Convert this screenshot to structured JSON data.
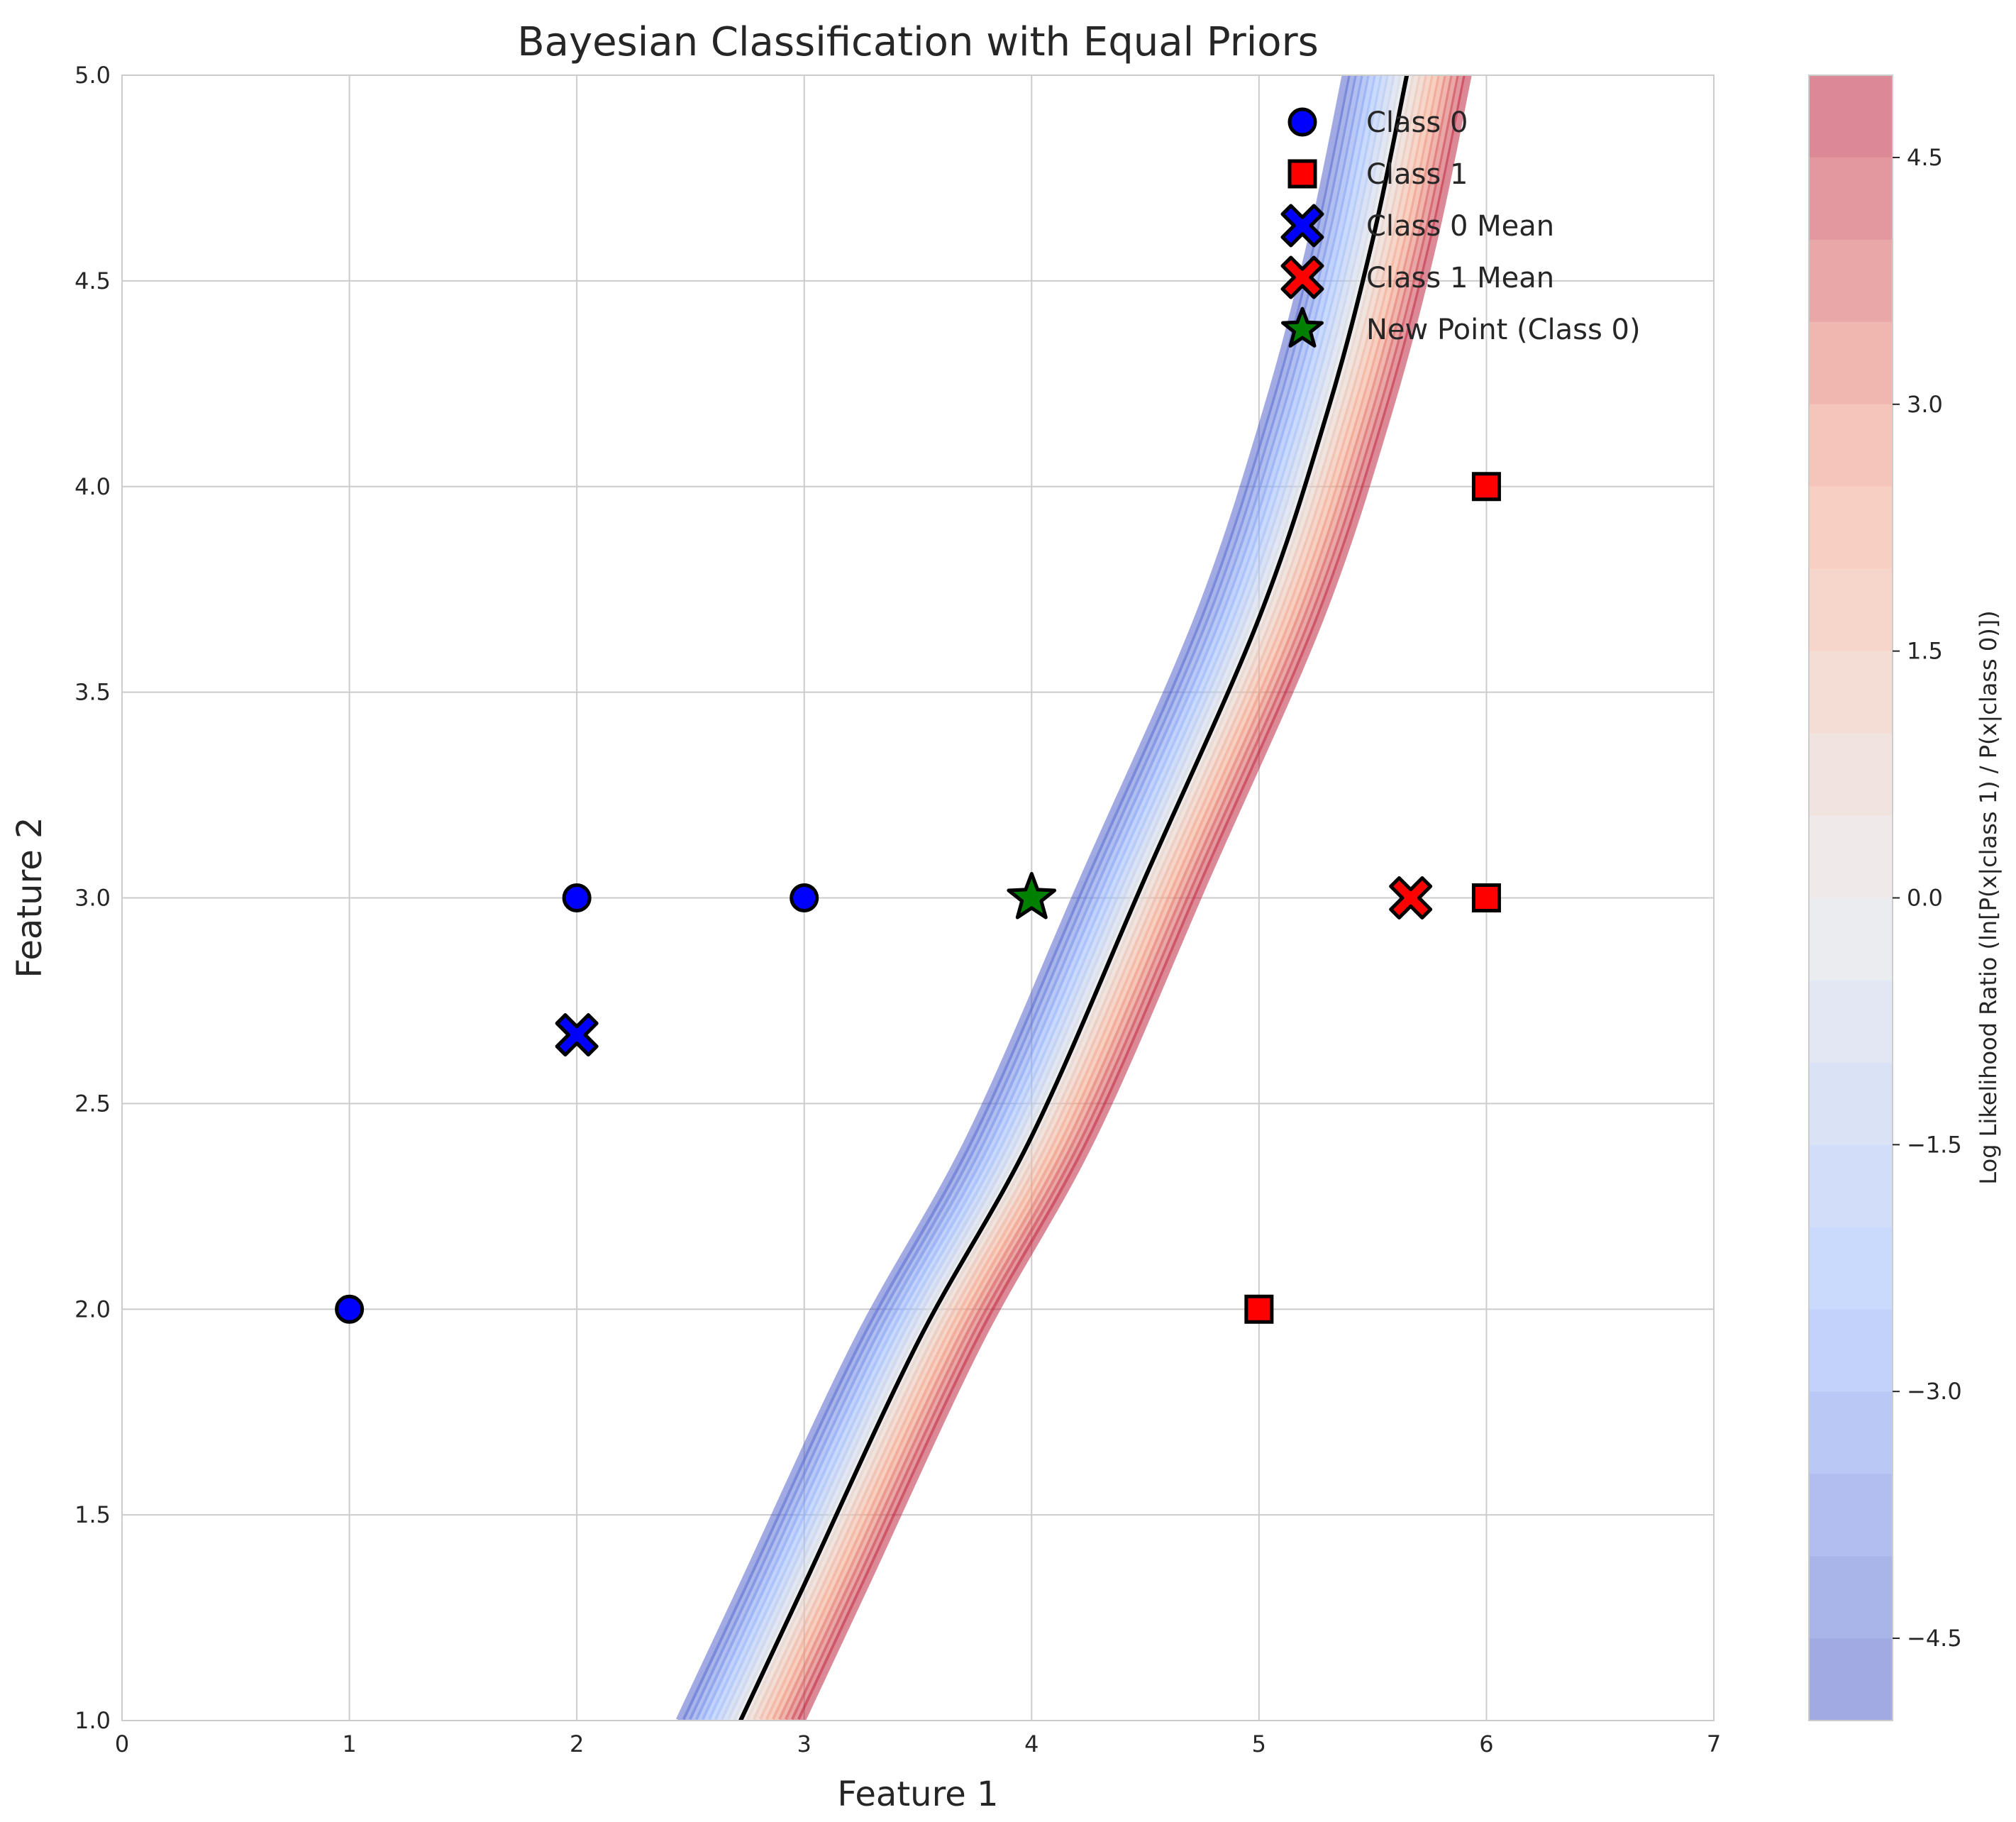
{
  "chart_data": {
    "type": "scatter",
    "title": "Bayesian Classification with Equal Priors",
    "xlabel": "Feature 1",
    "ylabel": "Feature 2",
    "xlim": [
      0,
      7
    ],
    "ylim": [
      1,
      5
    ],
    "xticks": [
      0,
      1,
      2,
      3,
      4,
      5,
      6,
      7
    ],
    "yticks": [
      1.0,
      1.5,
      2.0,
      2.5,
      3.0,
      3.5,
      4.0,
      4.5,
      5.0
    ],
    "xtick_labels": [
      "0",
      "1",
      "2",
      "3",
      "4",
      "5",
      "6",
      "7"
    ],
    "ytick_labels": [
      "1.0",
      "1.5",
      "2.0",
      "2.5",
      "3.0",
      "3.5",
      "4.0",
      "4.5",
      "5.0"
    ],
    "grid": true,
    "legend_position": "top-right",
    "series": [
      {
        "name": "Class 0",
        "marker": "circle",
        "color": "#0000ff",
        "points": [
          [
            1,
            2
          ],
          [
            2,
            3
          ],
          [
            3,
            3
          ]
        ]
      },
      {
        "name": "Class 1",
        "marker": "square",
        "color": "#ff0000",
        "points": [
          [
            5,
            2
          ],
          [
            6,
            3
          ],
          [
            6,
            4
          ]
        ]
      },
      {
        "name": "Class 0 Mean",
        "marker": "x",
        "color": "#0000ff",
        "points": [
          [
            2.0,
            2.667
          ]
        ]
      },
      {
        "name": "Class 1 Mean",
        "marker": "x",
        "color": "#ff0000",
        "points": [
          [
            5.667,
            3.0
          ]
        ]
      },
      {
        "name": "New Point (Class 0)",
        "marker": "star",
        "color": "#008000",
        "points": [
          [
            4,
            3
          ]
        ]
      }
    ],
    "decision_boundary": {
      "color": "#000000",
      "points": [
        [
          2.72,
          1.0
        ],
        [
          3.0,
          1.33
        ],
        [
          3.5,
          1.92
        ],
        [
          4.0,
          2.42
        ],
        [
          4.5,
          3.05
        ],
        [
          5.0,
          3.68
        ],
        [
          5.3,
          4.18
        ],
        [
          5.5,
          4.6
        ],
        [
          5.65,
          5.0
        ]
      ]
    },
    "colorbar": {
      "label": "Log Likelihood Ratio (ln[P(x|class 1) / P(x|class 0)])",
      "range": [
        -5,
        5
      ],
      "ticks": [
        -4.5,
        -3.0,
        -1.5,
        0.0,
        1.5,
        3.0,
        4.5
      ],
      "tick_labels": [
        "−4.5",
        "−3.0",
        "−1.5",
        "0.0",
        "1.5",
        "3.0",
        "4.5"
      ],
      "colormap": "coolwarm",
      "levels": 20
    }
  }
}
